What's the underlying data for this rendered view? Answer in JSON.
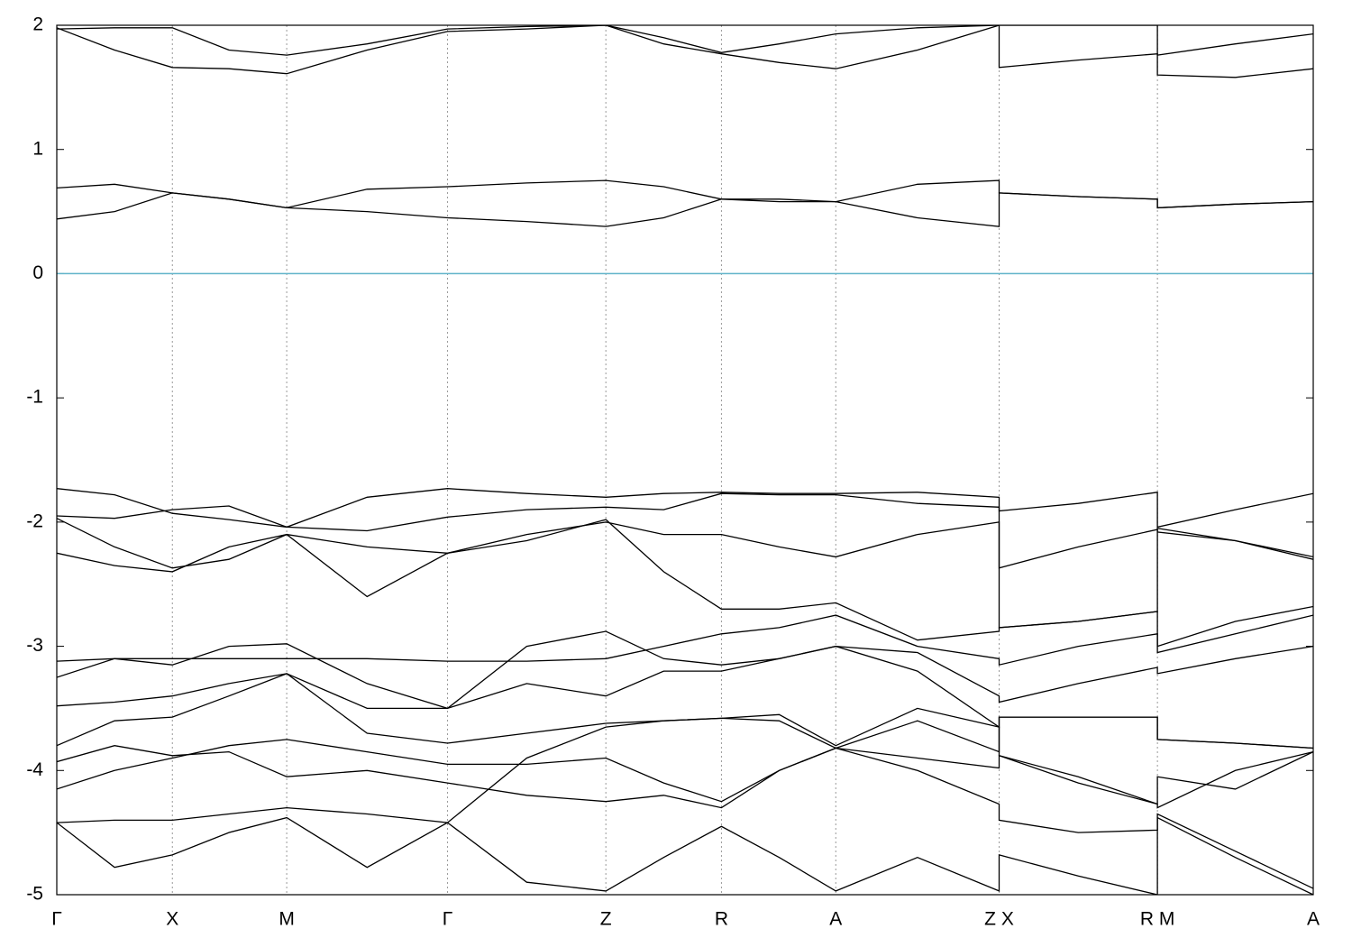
{
  "chart_data": {
    "type": "line",
    "x": [
      0,
      0.046,
      0.092,
      0.137,
      0.183,
      0.247,
      0.311,
      0.374,
      0.437,
      0.483,
      0.529,
      0.575,
      0.62,
      0.685,
      0.75,
      0.75,
      0.813,
      0.876,
      0.876,
      0.938,
      1.0
    ],
    "xlim": [
      0,
      1
    ],
    "xticks": [
      {
        "value": 0,
        "label": "Γ"
      },
      {
        "value": 0.092,
        "label": "X"
      },
      {
        "value": 0.183,
        "label": "M"
      },
      {
        "value": 0.311,
        "label": "Γ"
      },
      {
        "value": 0.437,
        "label": "Z"
      },
      {
        "value": 0.529,
        "label": "R"
      },
      {
        "value": 0.62,
        "label": "A"
      },
      {
        "value": 0.75,
        "label": "Z X"
      },
      {
        "value": 0.876,
        "label": "R M"
      },
      {
        "value": 1.0,
        "label": "A"
      }
    ],
    "ylim": [
      -5,
      2
    ],
    "yticks": [
      -5,
      -4,
      -3,
      -2,
      -1,
      0,
      1,
      2
    ],
    "grid": true,
    "reference_line": {
      "value": 0,
      "color": "#5fb3c9"
    },
    "series": [
      {
        "color": "#000000",
        "values": [
          0.44,
          0.5,
          0.65,
          0.6,
          0.53,
          0.5,
          0.45,
          0.42,
          0.38,
          0.45,
          0.6,
          0.58,
          0.58,
          0.45,
          0.38,
          0.65,
          0.62,
          0.6,
          0.53,
          0.56,
          0.58
        ]
      },
      {
        "color": "#000000",
        "values": [
          0.69,
          0.72,
          0.65,
          0.6,
          0.53,
          0.68,
          0.7,
          0.73,
          0.75,
          0.7,
          0.6,
          0.6,
          0.58,
          0.72,
          0.75,
          0.65,
          0.62,
          0.6,
          0.53,
          0.56,
          0.58
        ]
      },
      {
        "color": "#000000",
        "values": [
          1.98,
          1.8,
          1.66,
          1.65,
          1.61,
          1.8,
          1.95,
          1.97,
          2.0,
          1.85,
          1.77,
          1.7,
          1.65,
          1.8,
          2.0,
          1.66,
          1.72,
          1.77,
          1.6,
          1.58,
          1.65
        ]
      },
      {
        "color": "#000000",
        "values": [
          1.97,
          1.98,
          1.98,
          1.8,
          1.76,
          1.85,
          1.97,
          1.99,
          2.0,
          1.9,
          1.78,
          1.85,
          1.93,
          1.98,
          2.0,
          2.0,
          2.0,
          2.0,
          1.76,
          1.85,
          1.93
        ]
      },
      {
        "color": "#000000",
        "values": [
          -1.73,
          -1.78,
          -1.93,
          -1.98,
          -2.04,
          -1.8,
          -1.73,
          -1.77,
          -1.8,
          -1.77,
          -1.76,
          -1.77,
          -1.77,
          -1.76,
          -1.8,
          -1.91,
          -1.85,
          -1.76,
          -2.04,
          -1.9,
          -1.77
        ]
      },
      {
        "color": "#000000",
        "values": [
          -1.95,
          -1.97,
          -1.9,
          -1.87,
          -2.04,
          -2.07,
          -1.96,
          -1.9,
          -1.88,
          -1.9,
          -1.77,
          -1.78,
          -1.78,
          -1.85,
          -1.88,
          -2.37,
          -2.2,
          -2.06,
          -2.08,
          -2.15,
          -2.28
        ]
      },
      {
        "color": "#000000",
        "values": [
          -1.97,
          -2.2,
          -2.37,
          -2.3,
          -2.1,
          -2.2,
          -2.25,
          -2.1,
          -2.0,
          -2.1,
          -2.1,
          -2.2,
          -2.28,
          -2.1,
          -2.0,
          -2.85,
          -2.8,
          -2.72,
          -2.05,
          -2.15,
          -2.3
        ]
      },
      {
        "color": "#000000",
        "values": [
          -2.25,
          -2.35,
          -2.4,
          -2.2,
          -2.1,
          -2.6,
          -2.25,
          -2.15,
          -1.98,
          -2.4,
          -2.7,
          -2.7,
          -2.65,
          -2.95,
          -2.88,
          -2.85,
          -2.8,
          -2.72,
          -3.05,
          -2.9,
          -2.75
        ]
      },
      {
        "color": "#000000",
        "values": [
          -3.12,
          -3.1,
          -3.1,
          -3.1,
          -3.1,
          -3.1,
          -3.12,
          -3.12,
          -3.1,
          -3.0,
          -2.9,
          -2.85,
          -2.75,
          -3.0,
          -3.1,
          -3.15,
          -3.0,
          -2.9,
          -3.0,
          -2.8,
          -2.68
        ]
      },
      {
        "color": "#000000",
        "values": [
          -3.25,
          -3.1,
          -3.15,
          -3.0,
          -2.98,
          -3.3,
          -3.5,
          -3.0,
          -2.88,
          -3.1,
          -3.15,
          -3.1,
          -3.0,
          -3.05,
          -3.4,
          -3.45,
          -3.3,
          -3.17,
          -3.22,
          -3.1,
          -3.0
        ]
      },
      {
        "color": "#000000",
        "values": [
          -3.48,
          -3.45,
          -3.4,
          -3.3,
          -3.22,
          -3.5,
          -3.5,
          -3.3,
          -3.4,
          -3.2,
          -3.2,
          -3.1,
          -3.0,
          -3.2,
          -3.65,
          -3.57,
          -3.57,
          -3.57,
          -3.75,
          -3.78,
          -3.82
        ]
      },
      {
        "color": "#000000",
        "values": [
          -3.8,
          -3.6,
          -3.57,
          -3.4,
          -3.22,
          -3.7,
          -3.78,
          -3.7,
          -3.62,
          -3.6,
          -3.58,
          -3.6,
          -3.82,
          -3.9,
          -3.98,
          -3.88,
          -4.1,
          -4.27,
          -4.3,
          -4.0,
          -3.85
        ]
      },
      {
        "color": "#000000",
        "values": [
          -3.93,
          -3.8,
          -3.88,
          -3.85,
          -4.05,
          -4.0,
          -4.1,
          -4.2,
          -4.25,
          -4.2,
          -4.3,
          -4.0,
          -3.82,
          -4.0,
          -4.27,
          -4.4,
          -4.5,
          -4.48,
          -4.38,
          -4.7,
          -5.0
        ]
      },
      {
        "color": "#000000",
        "values": [
          -4.42,
          -4.4,
          -4.4,
          -4.35,
          -4.3,
          -4.35,
          -4.42,
          -4.9,
          -4.97,
          -4.7,
          -4.45,
          -4.7,
          -4.97,
          -4.7,
          -4.97,
          -4.68,
          -4.85,
          -5.0,
          -4.35,
          -4.65,
          -4.95
        ]
      },
      {
        "color": "#000000",
        "values": [
          -4.42,
          -4.78,
          -4.68,
          -4.5,
          -4.38,
          -4.78,
          -4.42,
          -3.9,
          -3.65,
          -3.6,
          -3.58,
          -3.55,
          -3.8,
          -3.5,
          -3.65,
          -3.88,
          -4.05,
          -4.27,
          -4.05,
          -4.15,
          -3.85
        ]
      },
      {
        "color": "#000000",
        "values": [
          -4.15,
          -4.0,
          -3.9,
          -3.8,
          -3.75,
          -3.85,
          -3.95,
          -3.95,
          -3.9,
          -4.1,
          -4.25,
          -4.0,
          -3.82,
          -3.6,
          -3.85,
          -3.57,
          -3.57,
          -3.57,
          -3.75,
          -3.78,
          -3.82
        ]
      }
    ]
  }
}
